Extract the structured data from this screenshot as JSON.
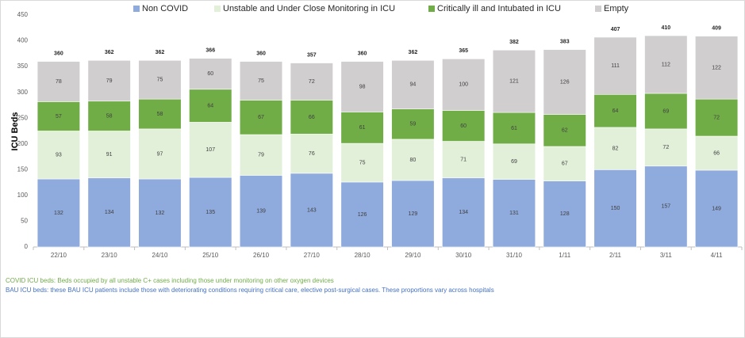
{
  "chart_data": {
    "type": "bar",
    "stacked": true,
    "title": "",
    "xlabel": "",
    "ylabel": "ICU Beds",
    "ylim": [
      0,
      450
    ],
    "yticks": [
      0,
      50,
      100,
      150,
      200,
      250,
      300,
      350,
      400,
      450
    ],
    "grid": false,
    "legend_position": "top",
    "categories": [
      "22/10",
      "23/10",
      "24/10",
      "25/10",
      "26/10",
      "27/10",
      "28/10",
      "29/10",
      "30/10",
      "31/10",
      "1/11",
      "2/11",
      "3/11",
      "4/11"
    ],
    "series": [
      {
        "name": "Non COVID",
        "color": "#8faadc",
        "values": [
          132,
          134,
          132,
          135,
          139,
          143,
          126,
          129,
          134,
          131,
          128,
          150,
          157,
          149
        ]
      },
      {
        "name": "Unstable and Under Close Monitoring in ICU",
        "color": "#e2f0d9",
        "values": [
          93,
          91,
          97,
          107,
          79,
          76,
          75,
          80,
          71,
          69,
          67,
          82,
          72,
          66
        ]
      },
      {
        "name": "Critically ill and Intubated in ICU",
        "color": "#70ad47",
        "values": [
          57,
          58,
          58,
          64,
          67,
          66,
          61,
          59,
          60,
          61,
          62,
          64,
          69,
          72
        ]
      },
      {
        "name": "Empty",
        "color": "#d0cece",
        "values": [
          78,
          79,
          75,
          60,
          75,
          72,
          98,
          94,
          100,
          121,
          126,
          111,
          112,
          122
        ]
      }
    ],
    "totals": [
      360,
      362,
      362,
      366,
      360,
      357,
      360,
      362,
      365,
      382,
      383,
      407,
      410,
      409
    ]
  },
  "footnotes": {
    "covid": "COVID ICU beds: Beds occupied by all unstable C+ cases including those under monitoring on other oxygen devices",
    "bau": "BAU ICU beds: these BAU ICU patients include those with deteriorating conditions requiring critical care, elective post-surgical cases. These proportions vary across hospitals"
  }
}
